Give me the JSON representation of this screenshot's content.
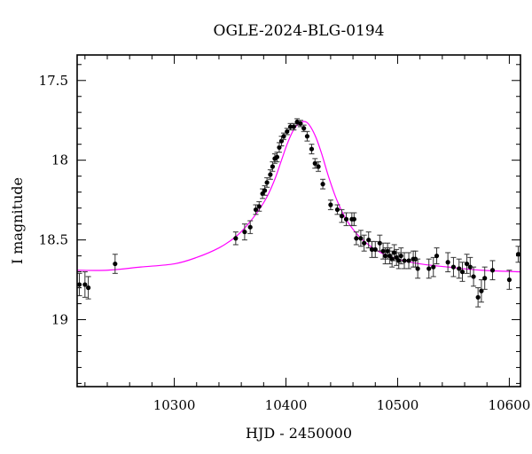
{
  "chart_data": {
    "type": "scatter",
    "title": "OGLE-2024-BLG-0194",
    "xlabel": "HJD - 2450000",
    "ylabel": "I magnitude",
    "xlim": [
      10213,
      10610
    ],
    "ylim": [
      19.42,
      17.34
    ],
    "y_inverted": true,
    "x_ticks": [
      10300,
      10400,
      10500,
      10600
    ],
    "y_ticks": [
      17.5,
      18,
      18.5,
      19
    ],
    "y_tick_labels": [
      "17.5",
      "18",
      "18.5",
      "19"
    ],
    "grid": false,
    "colors": {
      "data": "#000000",
      "errorbar": "#333333",
      "model": "#ff00ff"
    },
    "model": {
      "name": "",
      "color": "#ff00ff",
      "x": [
        10213,
        10240,
        10270,
        10300,
        10320,
        10340,
        10355,
        10365,
        10375,
        10383,
        10390,
        10396,
        10401,
        10406,
        10410,
        10414,
        10418,
        10422,
        10427,
        10432,
        10438,
        10445,
        10453,
        10462,
        10472,
        10485,
        10500,
        10520,
        10545,
        10575,
        10610
      ],
      "y": [
        18.69,
        18.69,
        18.67,
        18.65,
        18.61,
        18.55,
        18.48,
        18.41,
        18.32,
        18.23,
        18.12,
        18.0,
        17.9,
        17.82,
        17.78,
        17.76,
        17.76,
        17.79,
        17.86,
        17.96,
        18.1,
        18.24,
        18.36,
        18.45,
        18.52,
        18.58,
        18.62,
        18.65,
        18.67,
        18.69,
        18.7
      ]
    },
    "series": [
      {
        "name": "",
        "x": [
          10215,
          10220,
          10223,
          10247,
          10355,
          10363,
          10368,
          10373,
          10376,
          10379,
          10381,
          10383,
          10386,
          10388,
          10390,
          10392,
          10394,
          10396,
          10398,
          10401,
          10404,
          10407,
          10410,
          10413,
          10416,
          10419,
          10423,
          10426,
          10429,
          10433,
          10440,
          10446,
          10450,
          10454,
          10459,
          10461,
          10463,
          10467,
          10470,
          10474,
          10477,
          10480,
          10484,
          10487,
          10489,
          10491,
          10493,
          10495,
          10497,
          10499,
          10501,
          10503,
          10506,
          10510,
          10514,
          10516,
          10518,
          10528,
          10532,
          10535,
          10545,
          10550,
          10555,
          10558,
          10562,
          10565,
          10568,
          10572,
          10575,
          10578,
          10585,
          10600,
          10608
        ],
        "y": [
          18.78,
          18.78,
          18.8,
          18.65,
          18.49,
          18.45,
          18.42,
          18.31,
          18.29,
          18.21,
          18.19,
          18.14,
          18.09,
          18.04,
          17.99,
          17.98,
          17.92,
          17.88,
          17.85,
          17.82,
          17.79,
          17.79,
          17.76,
          17.77,
          17.8,
          17.85,
          17.93,
          18.02,
          18.04,
          18.15,
          18.28,
          18.31,
          18.35,
          18.37,
          18.37,
          18.37,
          18.49,
          18.49,
          18.52,
          18.5,
          18.56,
          18.56,
          18.52,
          18.57,
          18.6,
          18.57,
          18.6,
          18.62,
          18.58,
          18.61,
          18.63,
          18.6,
          18.63,
          18.63,
          18.62,
          18.62,
          18.68,
          18.68,
          18.67,
          18.6,
          18.64,
          18.67,
          18.68,
          18.7,
          18.65,
          18.67,
          18.73,
          18.86,
          18.82,
          18.74,
          18.69,
          18.75,
          18.59
        ],
        "yerr": [
          0.07,
          0.08,
          0.07,
          0.06,
          0.04,
          0.05,
          0.04,
          0.03,
          0.03,
          0.03,
          0.03,
          0.03,
          0.03,
          0.03,
          0.03,
          0.03,
          0.03,
          0.03,
          0.02,
          0.02,
          0.02,
          0.02,
          0.02,
          0.02,
          0.02,
          0.03,
          0.03,
          0.03,
          0.03,
          0.03,
          0.03,
          0.03,
          0.04,
          0.04,
          0.04,
          0.04,
          0.04,
          0.05,
          0.05,
          0.05,
          0.05,
          0.05,
          0.05,
          0.05,
          0.05,
          0.05,
          0.05,
          0.05,
          0.05,
          0.05,
          0.05,
          0.05,
          0.05,
          0.05,
          0.05,
          0.05,
          0.06,
          0.06,
          0.06,
          0.05,
          0.06,
          0.06,
          0.06,
          0.06,
          0.06,
          0.06,
          0.06,
          0.06,
          0.07,
          0.07,
          0.06,
          0.06,
          0.05
        ]
      }
    ]
  }
}
